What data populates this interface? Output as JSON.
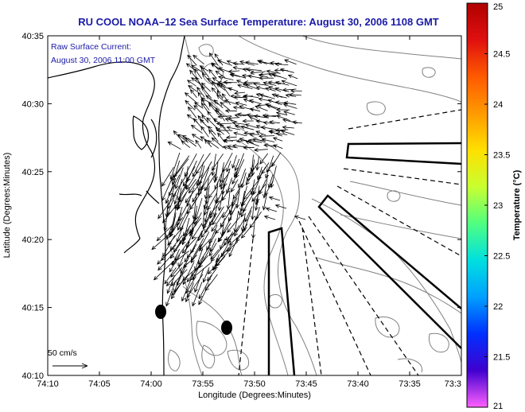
{
  "title": "RU COOL  NOAA–12  Sea Surface Temperature:  August 30, 2006 1108 GMT",
  "annotation": {
    "line1": "Raw Surface Current:",
    "line2": "August 30, 2006 11:00 GMT"
  },
  "scale_arrow_label": "50 cm/s",
  "axes": {
    "xlabel": "Longitude (Degrees:Minutes)",
    "ylabel": "Latitude (Degrees:Minutes)",
    "x_ticks": [
      "74:10",
      "74:05",
      "74:00",
      "73:55",
      "73:50",
      "73:45",
      "73:40",
      "73:35",
      "73:3"
    ],
    "y_ticks": [
      "40:35",
      "40:30",
      "40:25",
      "40:20",
      "40:15",
      "40:10"
    ]
  },
  "colorbar": {
    "label": "Temperature (°C)",
    "ticks": [
      "25",
      "24.5",
      "24",
      "23.5",
      "23",
      "22.5",
      "22",
      "21.5",
      "21"
    ],
    "colors": [
      "#b00000",
      "#e01010",
      "#ff5a00",
      "#ff9a00",
      "#ffe000",
      "#c8ff30",
      "#50ff80",
      "#00e0e0",
      "#00a0ff",
      "#0030ff",
      "#4000d0",
      "#ff60ff"
    ]
  },
  "map_colors": {
    "land_outline": "#000000",
    "bathymetry": "#808080",
    "vectors": "#000000",
    "background": "#ffffff"
  }
}
